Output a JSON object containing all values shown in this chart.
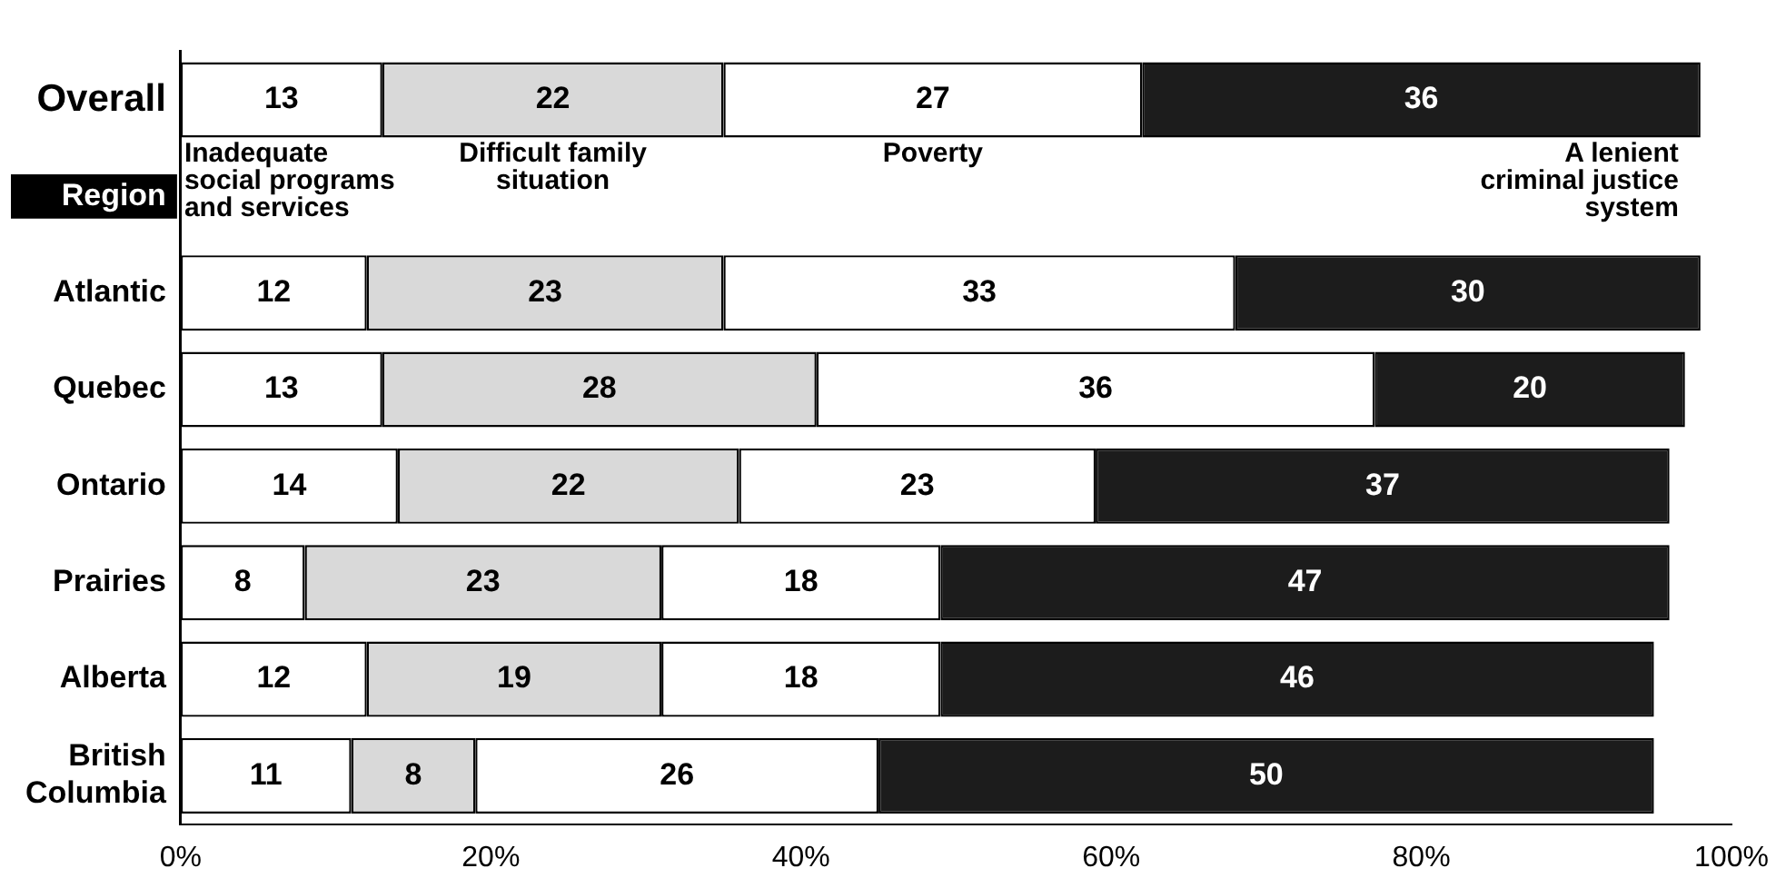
{
  "chart_data": {
    "type": "bar",
    "orientation": "horizontal",
    "stacked": true,
    "categories": [
      "Overall",
      "Region",
      "Atlantic",
      "Quebec",
      "Ontario",
      "Prairies",
      "Alberta",
      "British Columbia"
    ],
    "series": [
      {
        "name": "Inadequate social programs and services",
        "color": "#ffffff",
        "values": [
          13,
          null,
          12,
          13,
          14,
          8,
          12,
          11
        ]
      },
      {
        "name": "Difficult family situation",
        "color": "#d9d9d9",
        "values": [
          22,
          null,
          23,
          28,
          22,
          23,
          19,
          8
        ]
      },
      {
        "name": "Poverty",
        "color": "#ffffff",
        "values": [
          27,
          null,
          33,
          36,
          23,
          18,
          18,
          26
        ]
      },
      {
        "name": "A lenient criminal justice system",
        "color": "#1c1c1c",
        "values": [
          36,
          null,
          30,
          20,
          37,
          47,
          46,
          50
        ]
      }
    ],
    "xlim": [
      0,
      100
    ],
    "xticks": [
      {
        "value": 0,
        "label": "0%"
      },
      {
        "value": 20,
        "label": "20%"
      },
      {
        "value": 40,
        "label": "40%"
      },
      {
        "value": 60,
        "label": "60%"
      },
      {
        "value": 80,
        "label": "80%"
      },
      {
        "value": 100,
        "label": "100%"
      }
    ],
    "data_labels": true,
    "grid": false,
    "legend": false
  }
}
